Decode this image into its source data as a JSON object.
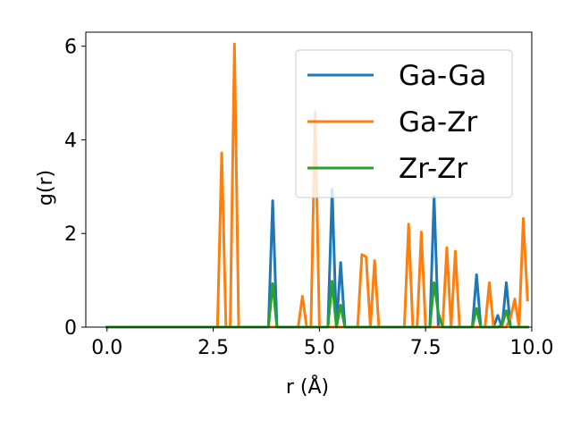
{
  "chart_data": {
    "type": "line",
    "xlabel": "r (Å)",
    "ylabel": "g(r)",
    "xlim": [
      -0.5,
      10.0
    ],
    "ylim": [
      0,
      6.3
    ],
    "xticks": [
      0.0,
      2.5,
      5.0,
      7.5,
      10.0
    ],
    "xtick_labels": [
      "0.0",
      "2.5",
      "5.0",
      "7.5",
      "10.0"
    ],
    "yticks": [
      0,
      2,
      4,
      6
    ],
    "ytick_labels": [
      "0",
      "2",
      "4",
      "6"
    ],
    "grid": false,
    "legend_position": "upper right",
    "series": [
      {
        "name": "Ga-Ga",
        "color": "#1f77b4",
        "x": [
          0.0,
          3.8,
          3.9,
          4.0,
          5.2,
          5.3,
          5.4,
          5.5,
          5.6,
          7.6,
          7.7,
          7.8,
          8.6,
          8.7,
          8.8,
          9.1,
          9.2,
          9.3,
          9.4,
          9.5,
          9.9
        ],
        "y": [
          0,
          0,
          2.7,
          0,
          0,
          2.95,
          0,
          1.38,
          0,
          0,
          2.8,
          0,
          0,
          1.12,
          0,
          0,
          0.25,
          0,
          0.95,
          0,
          0
        ]
      },
      {
        "name": "Ga-Zr",
        "color": "#ff7f0e",
        "x": [
          0.0,
          2.6,
          2.7,
          2.8,
          2.9,
          3.0,
          3.1,
          4.5,
          4.6,
          4.7,
          4.8,
          4.9,
          5.0,
          5.9,
          6.0,
          6.1,
          6.2,
          6.3,
          6.4,
          7.0,
          7.1,
          7.2,
          7.3,
          7.4,
          7.5,
          7.6,
          7.9,
          8.0,
          8.1,
          8.2,
          8.3,
          8.4,
          8.9,
          9.0,
          9.1,
          9.4,
          9.5,
          9.6,
          9.7,
          9.8,
          9.9
        ],
        "y": [
          0,
          0,
          3.72,
          0,
          0,
          6.05,
          0,
          0,
          0.66,
          0,
          0,
          4.6,
          0,
          0,
          1.55,
          1.5,
          0,
          1.42,
          0,
          0,
          2.2,
          0,
          0,
          2.03,
          0,
          0,
          0,
          1.7,
          0,
          1.62,
          0,
          0,
          0,
          0.95,
          0,
          0,
          0.2,
          0.6,
          0,
          2.32,
          0.58
        ]
      },
      {
        "name": "Zr-Zr",
        "color": "#2ca02c",
        "x": [
          0.0,
          3.8,
          3.9,
          4.0,
          5.2,
          5.3,
          5.4,
          5.5,
          5.6,
          7.6,
          7.7,
          7.8,
          7.9,
          8.6,
          8.7,
          8.8,
          9.2,
          9.3,
          9.4,
          9.5,
          9.9
        ],
        "y": [
          0,
          0,
          0.93,
          0,
          0,
          0.98,
          0,
          0.47,
          0,
          0,
          0.95,
          0.3,
          0,
          0,
          0.4,
          0,
          0,
          0.05,
          0.35,
          0,
          0
        ]
      }
    ]
  }
}
